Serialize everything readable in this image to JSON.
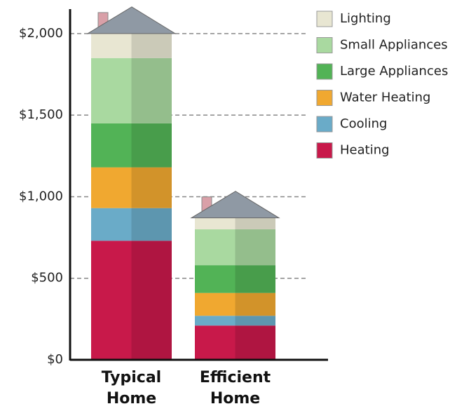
{
  "chart_data": {
    "type": "stacked-bar",
    "categories": [
      "Typical Home",
      "Efficient Home"
    ],
    "series": [
      {
        "name": "Heating",
        "color": "#c8194a",
        "values": [
          730,
          210
        ]
      },
      {
        "name": "Cooling",
        "color": "#6aabc8",
        "values": [
          200,
          60
        ]
      },
      {
        "name": "Water Heating",
        "color": "#f0a830",
        "values": [
          250,
          140
        ]
      },
      {
        "name": "Large Appliances",
        "color": "#52b356",
        "values": [
          270,
          170
        ]
      },
      {
        "name": "Small Appliances",
        "color": "#a9d9a0",
        "values": [
          400,
          220
        ]
      },
      {
        "name": "Lighting",
        "color": "#e8e6d2",
        "values": [
          150,
          70
        ]
      }
    ],
    "ylim": [
      0,
      2150
    ],
    "yticks": [
      {
        "value": 0,
        "label": "$0"
      },
      {
        "value": 500,
        "label": "$500"
      },
      {
        "value": 1000,
        "label": "$1,000"
      },
      {
        "value": 1500,
        "label": "$1,500"
      },
      {
        "value": 2000,
        "label": "$2,000"
      }
    ],
    "grid": true,
    "legend": "top-right"
  }
}
